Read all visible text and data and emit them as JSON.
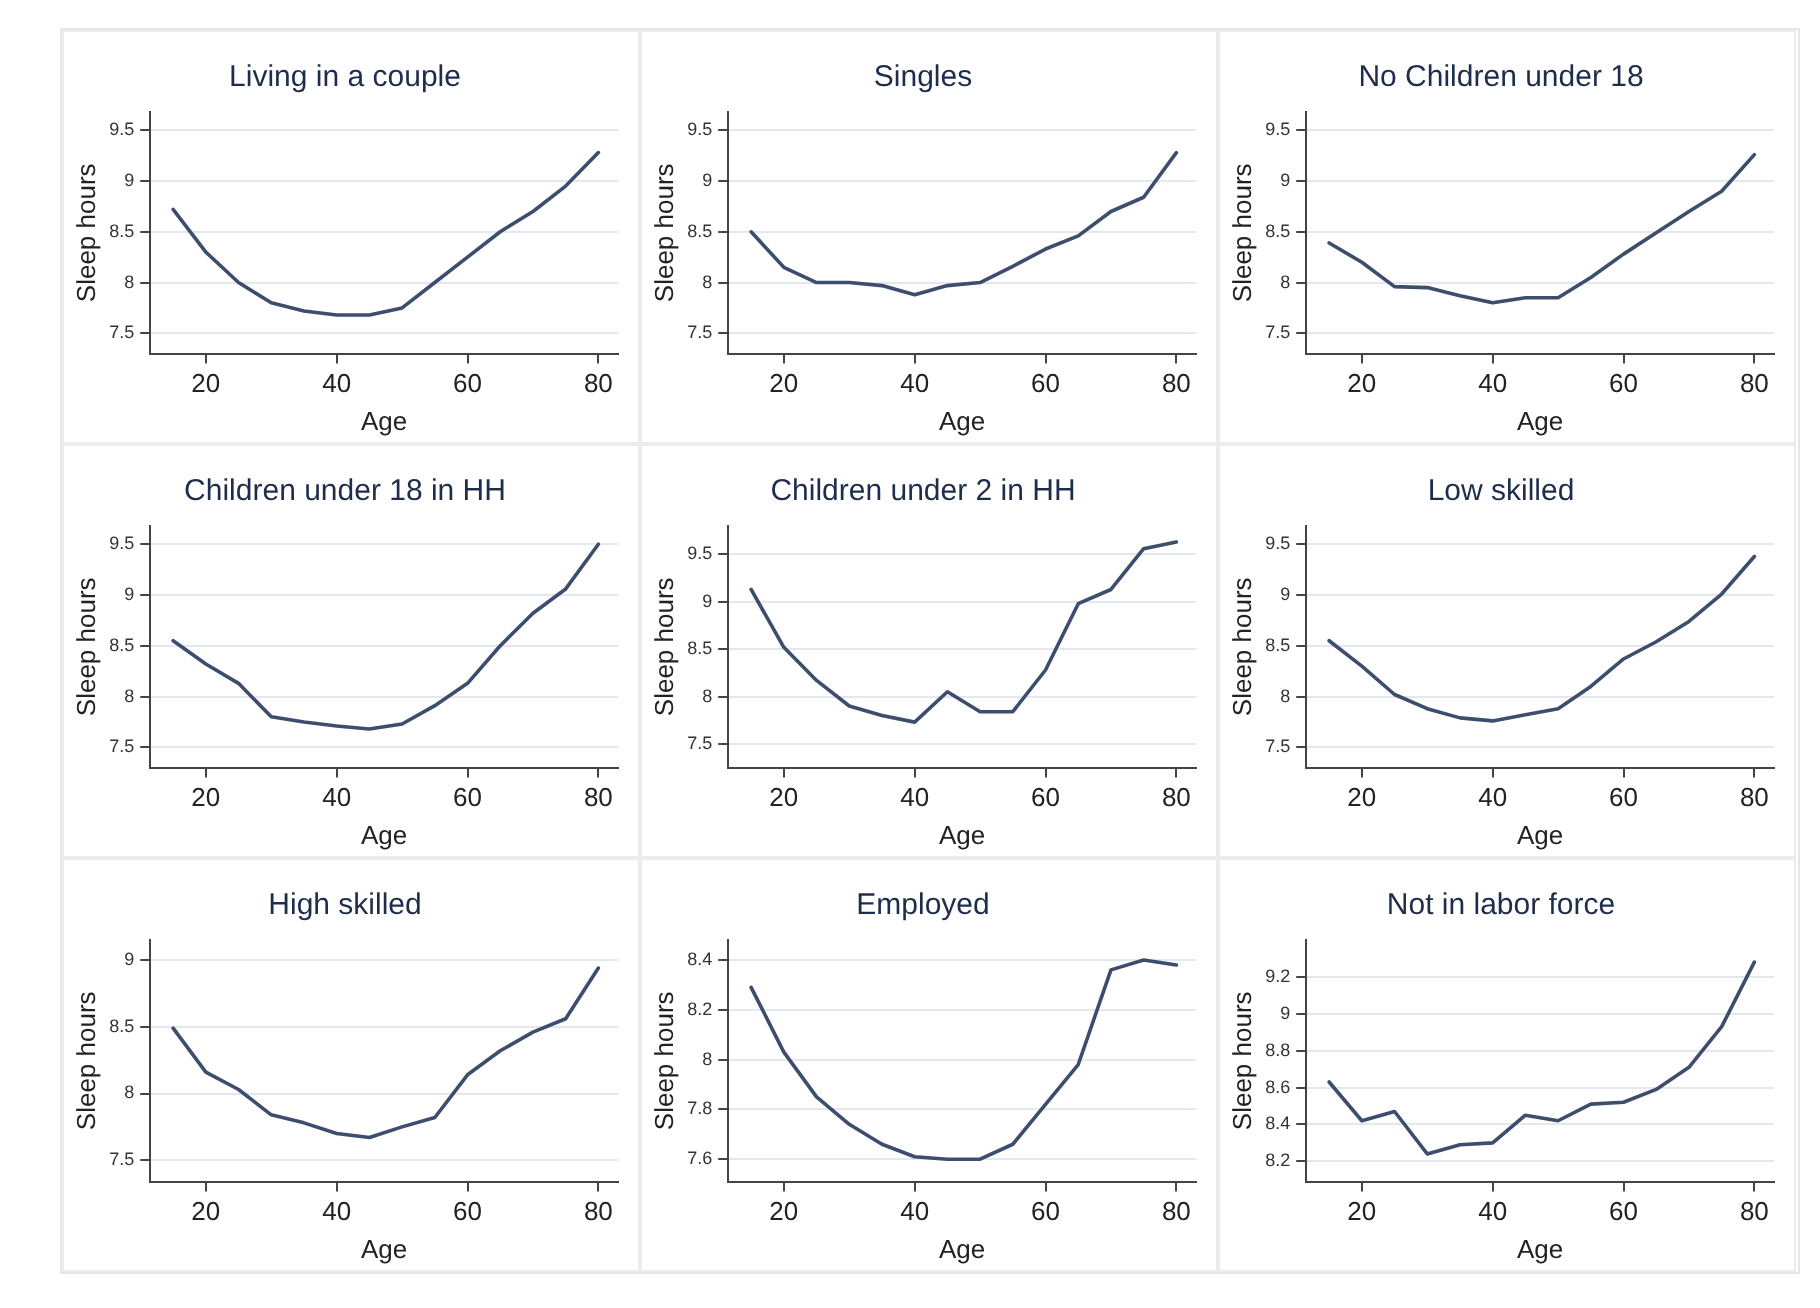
{
  "chart_data": [
    {
      "type": "line",
      "title": "Living in a couple",
      "xlabel": "Age",
      "ylabel": "Sleep hours",
      "color": "#3d4d6e",
      "grid": "y",
      "xlim": [
        11.5,
        83
      ],
      "xticks": [
        20,
        40,
        60,
        80
      ],
      "ylim": [
        7.3,
        9.68
      ],
      "yticks": [
        7.5,
        8,
        8.5,
        9,
        9.5
      ],
      "x": [
        15,
        20,
        25,
        30,
        35,
        40,
        45,
        50,
        55,
        60,
        65,
        70,
        75,
        80
      ],
      "values": [
        8.72,
        8.3,
        8.0,
        7.8,
        7.72,
        7.68,
        7.68,
        7.75,
        8.0,
        8.25,
        8.5,
        8.7,
        8.95,
        9.28
      ]
    },
    {
      "type": "line",
      "title": "Singles",
      "xlabel": "Age",
      "ylabel": "Sleep hours",
      "color": "#3d4d6e",
      "grid": "y",
      "xlim": [
        11.5,
        83
      ],
      "xticks": [
        20,
        40,
        60,
        80
      ],
      "ylim": [
        7.3,
        9.68
      ],
      "yticks": [
        7.5,
        8,
        8.5,
        9,
        9.5
      ],
      "x": [
        15,
        20,
        25,
        30,
        35,
        40,
        45,
        50,
        55,
        60,
        65,
        70,
        75,
        80
      ],
      "values": [
        8.5,
        8.15,
        8.0,
        8.0,
        7.97,
        7.88,
        7.97,
        8.0,
        8.16,
        8.33,
        8.46,
        8.7,
        8.84,
        9.28
      ]
    },
    {
      "type": "line",
      "title": "No Children under 18",
      "xlabel": "Age",
      "ylabel": "Sleep hours",
      "color": "#3d4d6e",
      "grid": "y",
      "xlim": [
        11.5,
        83
      ],
      "xticks": [
        20,
        40,
        60,
        80
      ],
      "ylim": [
        7.3,
        9.68
      ],
      "yticks": [
        7.5,
        8,
        8.5,
        9,
        9.5
      ],
      "x": [
        15,
        20,
        25,
        30,
        35,
        40,
        45,
        50,
        55,
        60,
        65,
        70,
        75,
        80
      ],
      "values": [
        8.39,
        8.2,
        7.96,
        7.95,
        7.87,
        7.8,
        7.85,
        7.85,
        8.05,
        8.28,
        8.49,
        8.7,
        8.9,
        9.26
      ]
    },
    {
      "type": "line",
      "title": "Children under 18 in HH",
      "xlabel": "Age",
      "ylabel": "Sleep hours",
      "color": "#3d4d6e",
      "grid": "y",
      "xlim": [
        11.5,
        83
      ],
      "xticks": [
        20,
        40,
        60,
        80
      ],
      "ylim": [
        7.3,
        9.68
      ],
      "yticks": [
        7.5,
        8,
        8.5,
        9,
        9.5
      ],
      "x": [
        15,
        20,
        25,
        30,
        35,
        40,
        45,
        50,
        55,
        60,
        65,
        70,
        75,
        80
      ],
      "values": [
        8.55,
        8.32,
        8.13,
        7.8,
        7.75,
        7.71,
        7.68,
        7.73,
        7.91,
        8.13,
        8.5,
        8.82,
        9.06,
        9.5
      ]
    },
    {
      "type": "line",
      "title": "Children under 2 in HH",
      "xlabel": "Age",
      "ylabel": "Sleep hours",
      "color": "#3d4d6e",
      "grid": "y",
      "xlim": [
        11.5,
        83
      ],
      "xticks": [
        20,
        40,
        60,
        80
      ],
      "ylim": [
        7.25,
        9.8
      ],
      "yticks": [
        7.5,
        8,
        8.5,
        9,
        9.5
      ],
      "x": [
        15,
        20,
        25,
        30,
        35,
        40,
        45,
        50,
        55,
        60,
        65,
        70,
        75,
        80
      ],
      "values": [
        9.13,
        8.52,
        8.17,
        7.9,
        7.8,
        7.73,
        8.05,
        7.84,
        7.84,
        8.28,
        8.98,
        9.13,
        9.56,
        9.63
      ]
    },
    {
      "type": "line",
      "title": "Low skilled",
      "xlabel": "Age",
      "ylabel": "Sleep hours",
      "color": "#3d4d6e",
      "grid": "y",
      "xlim": [
        11.5,
        83
      ],
      "xticks": [
        20,
        40,
        60,
        80
      ],
      "ylim": [
        7.3,
        9.68
      ],
      "yticks": [
        7.5,
        8,
        8.5,
        9,
        9.5
      ],
      "x": [
        15,
        20,
        25,
        30,
        35,
        40,
        45,
        50,
        55,
        60,
        65,
        70,
        75,
        80
      ],
      "values": [
        8.55,
        8.3,
        8.02,
        7.88,
        7.79,
        7.76,
        7.82,
        7.88,
        8.1,
        8.37,
        8.54,
        8.74,
        9.01,
        9.38
      ]
    },
    {
      "type": "line",
      "title": "High skilled",
      "xlabel": "Age",
      "ylabel": "Sleep hours",
      "color": "#3d4d6e",
      "grid": "y",
      "xlim": [
        11.5,
        83
      ],
      "xticks": [
        20,
        40,
        60,
        80
      ],
      "ylim": [
        7.34,
        9.15
      ],
      "yticks": [
        7.5,
        8,
        8.5,
        9
      ],
      "x": [
        15,
        20,
        25,
        30,
        35,
        40,
        45,
        50,
        55,
        60,
        65,
        70,
        75,
        80
      ],
      "values": [
        8.49,
        8.16,
        8.03,
        7.84,
        7.78,
        7.7,
        7.67,
        7.75,
        7.82,
        8.14,
        8.32,
        8.46,
        8.56,
        8.94
      ]
    },
    {
      "type": "line",
      "title": "Employed",
      "xlabel": "Age",
      "ylabel": "Sleep hours",
      "color": "#3d4d6e",
      "grid": "y",
      "xlim": [
        11.5,
        83
      ],
      "xticks": [
        20,
        40,
        60,
        80
      ],
      "ylim": [
        7.51,
        8.48
      ],
      "yticks": [
        7.6,
        7.8,
        8,
        8.2,
        8.4
      ],
      "x": [
        15,
        20,
        25,
        30,
        35,
        40,
        45,
        50,
        55,
        60,
        65,
        70,
        75,
        80
      ],
      "values": [
        8.29,
        8.03,
        7.85,
        7.74,
        7.66,
        7.61,
        7.6,
        7.6,
        7.66,
        7.82,
        7.98,
        8.36,
        8.4,
        8.38
      ]
    },
    {
      "type": "line",
      "title": "Not in labor force",
      "xlabel": "Age",
      "ylabel": "Sleep hours",
      "color": "#3d4d6e",
      "grid": "y",
      "xlim": [
        11.5,
        83
      ],
      "xticks": [
        20,
        40,
        60,
        80
      ],
      "ylim": [
        8.09,
        9.4
      ],
      "yticks": [
        8.2,
        8.4,
        8.6,
        8.8,
        9,
        9.2
      ],
      "x": [
        15,
        20,
        25,
        30,
        35,
        40,
        45,
        50,
        55,
        60,
        65,
        70,
        75,
        80
      ],
      "values": [
        8.63,
        8.42,
        8.47,
        8.24,
        8.29,
        8.3,
        8.45,
        8.42,
        8.51,
        8.52,
        8.59,
        8.71,
        8.93,
        9.28
      ]
    }
  ]
}
